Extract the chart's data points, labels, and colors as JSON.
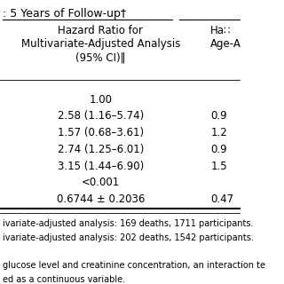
{
  "title_partial": ": 5 Years of Follow-up†",
  "col2_header": "Hazard Ratio for\nMultivariate-Adjusted Analysis\n(95% CI)‖",
  "col3_header": "Ha∷\nAge-A",
  "rows": [
    [
      "",
      "1.00",
      ""
    ],
    [
      "",
      "2.58 (1.16–5.74)",
      "0.9"
    ],
    [
      "",
      "1.57 (0.68–3.61)",
      "1.2"
    ],
    [
      "",
      "2.74 (1.25–6.01)",
      "0.9"
    ],
    [
      "",
      "3.15 (1.44–6.90)",
      "1.5"
    ],
    [
      "",
      "<0.001",
      ""
    ],
    [
      "",
      "0.6744 ± 0.2036",
      "0.47"
    ]
  ],
  "footer_lines": [
    "ivariate-adjusted analysis: 169 deaths, 1711 participants.",
    "ivariate-adjusted analysis: 202 deaths, 1542 participants.",
    "",
    "glucose level and creatinine concentration, an interaction te",
    "ed as a continuous variable."
  ],
  "bg_color": "#ffffff",
  "text_color": "#000000",
  "font_size": 8.5
}
